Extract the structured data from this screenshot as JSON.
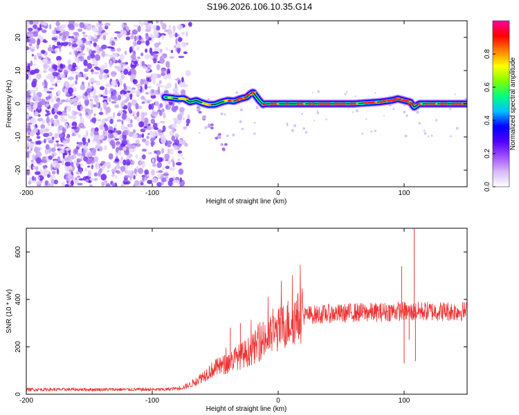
{
  "figure_title": "S196.2026.106.10.35.G14",
  "chart_data": [
    {
      "type": "heatmap",
      "name": "spectrogram",
      "xlabel": "Height of straight line (km)",
      "ylabel": "Frequency (Hz)",
      "xlim": [
        -200,
        150
      ],
      "ylim": [
        -25,
        25
      ],
      "xticks": [
        -200,
        -100,
        0,
        100
      ],
      "xtick_labels": [
        "-200",
        "-100",
        "0",
        "100"
      ],
      "yticks": [
        -20,
        -10,
        0,
        10,
        20
      ],
      "ytick_labels": [
        "-20",
        "-10",
        "0",
        "10",
        "20"
      ],
      "noise_region_x": [
        -200,
        -80
      ],
      "signal_track": {
        "x": [
          -90,
          -85,
          -80,
          -75,
          -70,
          -65,
          -60,
          -55,
          -50,
          -45,
          -40,
          -35,
          -30,
          -25,
          -22,
          -20,
          -18,
          -15,
          -12,
          -10,
          -5,
          0,
          10,
          20,
          40,
          60,
          80,
          90,
          95,
          100,
          105,
          108,
          112,
          120,
          150
        ],
        "y": [
          2,
          1.8,
          1.5,
          1.6,
          0.5,
          1,
          0.2,
          -0.3,
          -0.2,
          0.5,
          1,
          0.8,
          1.5,
          2,
          3,
          3.5,
          2.5,
          1,
          -0.2,
          0,
          0,
          0,
          0,
          0,
          0,
          0,
          0.5,
          1,
          1.5,
          1,
          0.5,
          -1,
          0,
          0,
          0
        ]
      },
      "branch_track": {
        "x": [
          -65,
          -60,
          -55,
          -50,
          -45
        ],
        "y": [
          -2,
          -4,
          -7,
          -10,
          -13
        ]
      },
      "colorbar": {
        "label": "Normalized spectral amplitude",
        "range": [
          0,
          1
        ],
        "ticks": [
          0.0,
          0.2,
          0.4,
          0.6,
          0.8
        ],
        "tick_labels": [
          "0.0",
          "0.2",
          "0.4",
          "0.6",
          "0.8"
        ],
        "colors": [
          "#ffffff",
          "#d8b8f8",
          "#a050ff",
          "#5000ff",
          "#0000ff",
          "#00c0ff",
          "#00ff80",
          "#80ff00",
          "#ffff00",
          "#ff8000",
          "#ff0000",
          "#ff00a0"
        ]
      }
    },
    {
      "type": "line",
      "name": "snr",
      "xlabel": "Height of straight line (km)",
      "ylabel": "SNR (10 * v/v)",
      "xlim": [
        -200,
        150
      ],
      "ylim": [
        0,
        700
      ],
      "xticks": [
        -200,
        -100,
        0,
        100
      ],
      "xtick_labels": [
        "-200",
        "-100",
        "0",
        "100"
      ],
      "yticks": [
        0,
        200,
        400,
        600
      ],
      "ytick_labels": [
        "0",
        "200",
        "400",
        "600"
      ],
      "color": "#ee3333",
      "envelope": {
        "x": [
          -200,
          -150,
          -100,
          -90,
          -80,
          -75,
          -70,
          -65,
          -60,
          -55,
          -50,
          -45,
          -40,
          -35,
          -30,
          -25,
          -20,
          -15,
          -10,
          -5,
          0,
          5,
          10,
          15,
          20,
          25,
          30,
          40,
          50,
          60,
          70,
          80,
          90,
          95,
          100,
          105,
          110,
          120,
          130,
          140,
          150
        ],
        "y": [
          20,
          20,
          20,
          20,
          25,
          30,
          40,
          55,
          75,
          95,
          110,
          120,
          130,
          150,
          160,
          175,
          190,
          215,
          230,
          250,
          270,
          290,
          310,
          320,
          330,
          335,
          335,
          340,
          340,
          345,
          345,
          345,
          350,
          350,
          350,
          345,
          350,
          350,
          350,
          350,
          350
        ]
      },
      "spikes": [
        {
          "x": 98,
          "y": 540
        },
        {
          "x": 100,
          "y": 130
        },
        {
          "x": 108,
          "y": 700
        },
        {
          "x": 109,
          "y": 140
        },
        {
          "x": 104,
          "y": 230
        },
        {
          "x": -30,
          "y": 300
        },
        {
          "x": -38,
          "y": 280
        },
        {
          "x": -12,
          "y": 305
        }
      ]
    }
  ]
}
